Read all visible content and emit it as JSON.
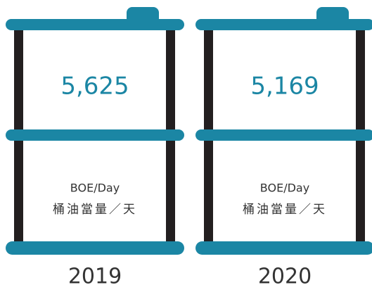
{
  "barrels": [
    {
      "value": "5,625",
      "unit": "BOE/Day",
      "unit_zh": "桶油當量／天",
      "year": "2019"
    },
    {
      "value": "5,169",
      "unit": "BOE/Day",
      "unit_zh": "桶油當量／天",
      "year": "2020"
    }
  ]
}
